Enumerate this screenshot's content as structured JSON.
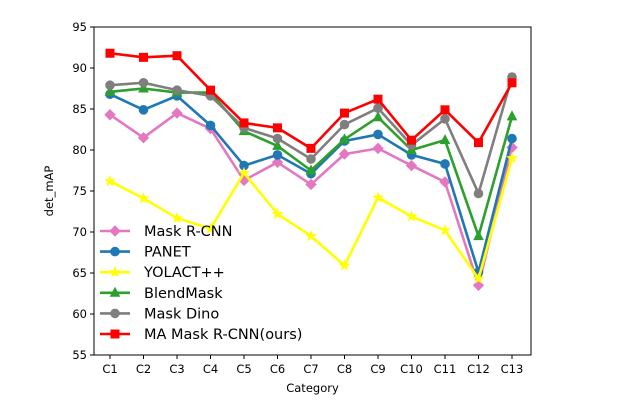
{
  "chart_data": {
    "type": "line",
    "title": "",
    "xlabel": "Category",
    "ylabel": "det_mAP",
    "ylim": [
      55,
      95
    ],
    "yticks": [
      55,
      60,
      65,
      70,
      75,
      80,
      85,
      90,
      95
    ],
    "categories": [
      "C1",
      "C2",
      "C3",
      "C4",
      "C5",
      "C6",
      "C7",
      "C8",
      "C9",
      "C10",
      "C11",
      "C12",
      "C13"
    ],
    "grid": false,
    "legend_position": "lower-left",
    "series": [
      {
        "name": "Mask R-CNN",
        "color": "#e377c2",
        "marker": "diamond",
        "values": [
          84.3,
          81.5,
          84.5,
          82.6,
          76.3,
          78.5,
          75.8,
          79.5,
          80.2,
          78.1,
          76.1,
          63.5,
          80.3
        ]
      },
      {
        "name": "PANET",
        "color": "#1f77b4",
        "marker": "circle",
        "values": [
          86.8,
          84.9,
          86.6,
          83.0,
          78.1,
          79.4,
          77.1,
          81.1,
          81.9,
          79.4,
          78.3,
          65.1,
          81.4
        ]
      },
      {
        "name": "YOLACT++",
        "color": "#ffff00",
        "marker": "star",
        "values": [
          76.2,
          74.1,
          71.7,
          70.4,
          77.2,
          72.2,
          69.5,
          65.9,
          74.2,
          71.9,
          70.2,
          64.3,
          79.0
        ]
      },
      {
        "name": "BlendMask",
        "color": "#2ca02c",
        "marker": "triangle",
        "values": [
          87.1,
          87.5,
          87.0,
          87.0,
          82.3,
          80.5,
          77.5,
          81.3,
          84.0,
          80.0,
          81.2,
          69.5,
          84.1
        ]
      },
      {
        "name": "Mask Dino",
        "color": "#7f7f7f",
        "marker": "circle",
        "values": [
          87.9,
          88.2,
          87.3,
          86.6,
          82.7,
          81.4,
          78.9,
          83.1,
          85.1,
          80.6,
          83.8,
          74.7,
          88.9
        ]
      },
      {
        "name": "MA Mask R-CNN(ours)",
        "color": "#ff0000",
        "marker": "square",
        "values": [
          91.8,
          91.3,
          91.5,
          87.3,
          83.3,
          82.7,
          80.2,
          84.5,
          86.2,
          81.2,
          84.9,
          80.9,
          88.2
        ]
      }
    ]
  }
}
